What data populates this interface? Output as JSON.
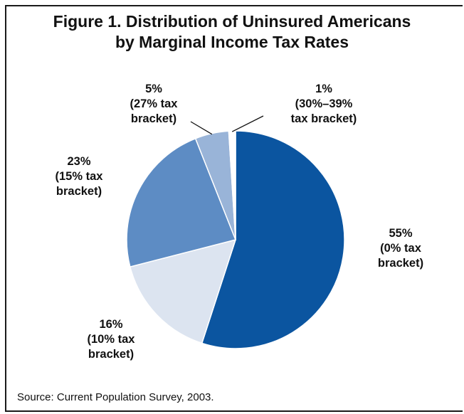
{
  "chart_data": {
    "type": "pie",
    "title_line1": "Figure 1. Distribution of Uninsured Americans",
    "title_line2": "by Marginal Income Tax Rates",
    "slices": [
      {
        "value": 55,
        "pct": "55%",
        "name": "(0% tax",
        "name2": "bracket)",
        "color": "#0b55a0"
      },
      {
        "value": 16,
        "pct": "16%",
        "name": "(10% tax",
        "name2": "bracket)",
        "color": "#dce4f0"
      },
      {
        "value": 23,
        "pct": "23%",
        "name": "(15% tax",
        "name2": "bracket)",
        "color": "#5d8cc4"
      },
      {
        "value": 5,
        "pct": "5%",
        "name": "(27% tax",
        "name2": "bracket)",
        "color": "#99b4d8"
      },
      {
        "value": 1,
        "pct": "1%",
        "name": "(30%–39%",
        "name2": "tax bracket)",
        "color": "#ffffff"
      }
    ]
  },
  "source": "Source: Current Population Survey, 2003."
}
